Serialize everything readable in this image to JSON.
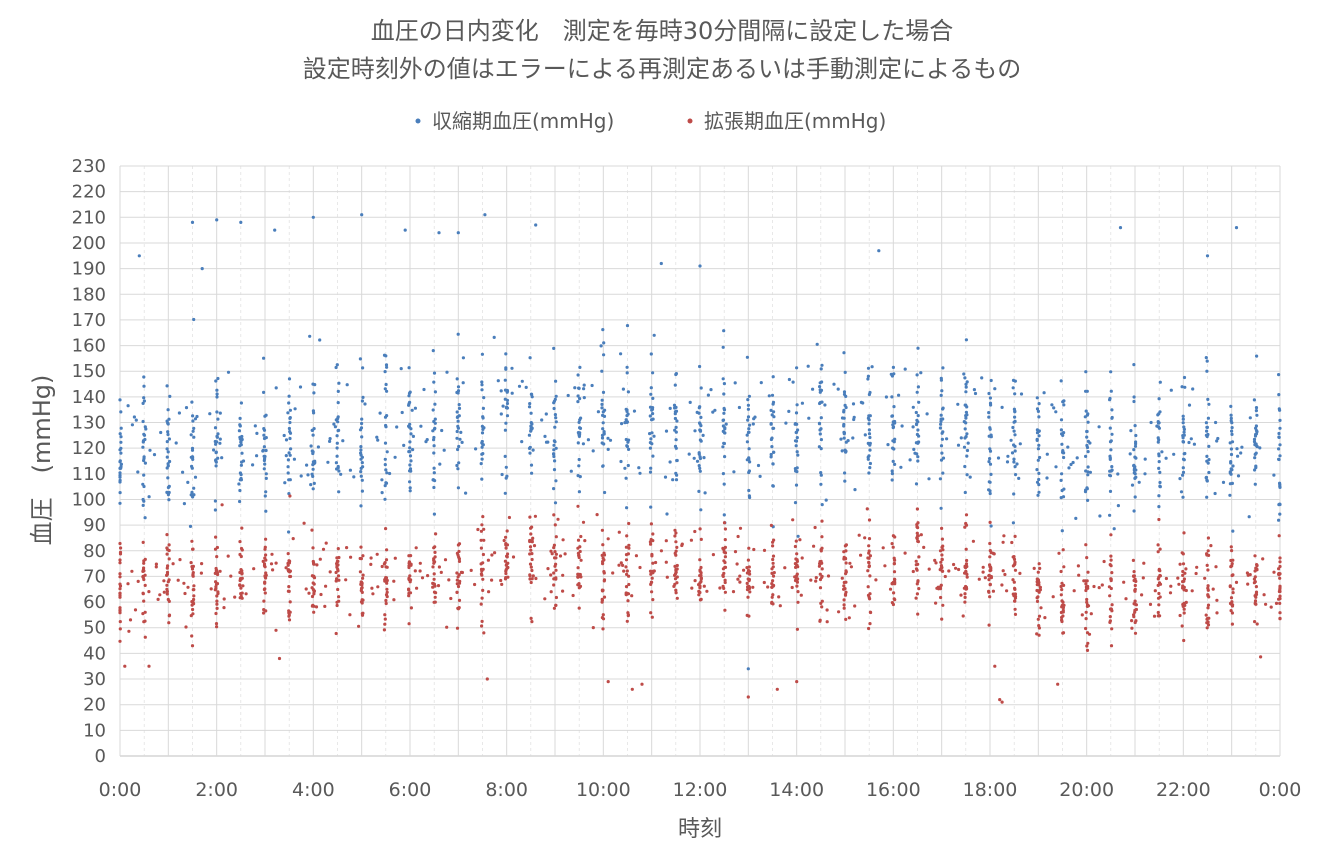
{
  "chart_data": {
    "type": "scatter",
    "title_line1": "血圧の日内変化　測定を毎時30分間隔に設定した場合",
    "title_line2": "設定時刻外の値はエラーによる再測定あるいは手動測定によるもの",
    "xlabel": "時刻",
    "ylabel": "血圧　(mmHg)",
    "xlim_hours": [
      0,
      24
    ],
    "ylim": [
      0,
      230
    ],
    "y_ticks": [
      0,
      10,
      20,
      30,
      40,
      50,
      60,
      70,
      80,
      90,
      100,
      110,
      120,
      130,
      140,
      150,
      160,
      170,
      180,
      190,
      200,
      210,
      220,
      230
    ],
    "x_ticks_hours": [
      0,
      2,
      4,
      6,
      8,
      10,
      12,
      14,
      16,
      18,
      20,
      22,
      24
    ],
    "x_tick_labels": [
      "0:00",
      "2:00",
      "4:00",
      "6:00",
      "8:00",
      "10:00",
      "12:00",
      "14:00",
      "16:00",
      "18:00",
      "20:00",
      "22:00",
      "0:00"
    ],
    "grid": true,
    "legend_position": "top",
    "colors": {
      "systolic": "#4A7EBB",
      "diastolic": "#BE4B48",
      "grid": "#D9D9D9",
      "text": "#595959"
    },
    "series": [
      {
        "key": "systolic",
        "name": "収縮期血圧(mmHg)",
        "hourly_mean": [
          [
            0,
            120
          ],
          [
            1,
            120
          ],
          [
            2,
            121
          ],
          [
            3,
            122
          ],
          [
            4,
            123
          ],
          [
            5,
            124
          ],
          [
            6,
            124
          ],
          [
            7,
            127
          ],
          [
            8,
            132
          ],
          [
            9,
            131
          ],
          [
            10,
            129
          ],
          [
            11,
            128
          ],
          [
            12,
            128
          ],
          [
            13,
            127
          ],
          [
            14,
            127
          ],
          [
            15,
            128
          ],
          [
            16,
            129
          ],
          [
            17,
            129
          ],
          [
            18,
            127
          ],
          [
            19,
            121
          ],
          [
            20,
            118
          ],
          [
            21,
            119
          ],
          [
            22,
            121
          ],
          [
            23,
            121
          ],
          [
            24,
            120
          ]
        ],
        "spread_sd": 14,
        "outliers": [
          [
            1.5,
            208
          ],
          [
            2.0,
            209
          ],
          [
            2.5,
            208
          ],
          [
            4.0,
            210
          ],
          [
            5.0,
            211
          ],
          [
            7.55,
            211
          ],
          [
            8.6,
            207
          ],
          [
            11.2,
            192
          ],
          [
            12.0,
            191
          ],
          [
            20.7,
            206
          ],
          [
            23.1,
            206
          ],
          [
            22.5,
            195
          ],
          [
            15.7,
            197
          ],
          [
            3.2,
            205
          ],
          [
            6.6,
            204
          ],
          [
            7.0,
            204
          ],
          [
            0.4,
            195
          ],
          [
            1.7,
            190
          ],
          [
            5.9,
            205
          ],
          [
            13.0,
            34
          ]
        ]
      },
      {
        "key": "diastolic",
        "name": "拡張期血圧(mmHg)",
        "hourly_mean": [
          [
            0,
            67
          ],
          [
            1,
            68
          ],
          [
            2,
            69
          ],
          [
            3,
            69
          ],
          [
            4,
            70
          ],
          [
            5,
            70
          ],
          [
            6,
            70
          ],
          [
            7,
            72
          ],
          [
            8,
            77
          ],
          [
            9,
            75
          ],
          [
            10,
            73
          ],
          [
            11,
            72
          ],
          [
            12,
            72
          ],
          [
            13,
            71
          ],
          [
            14,
            71
          ],
          [
            15,
            72
          ],
          [
            16,
            73
          ],
          [
            17,
            74
          ],
          [
            18,
            72
          ],
          [
            19,
            64
          ],
          [
            20,
            61
          ],
          [
            21,
            63
          ],
          [
            22,
            65
          ],
          [
            23,
            66
          ],
          [
            24,
            67
          ]
        ],
        "spread_sd": 9,
        "outliers": [
          [
            18.2,
            22
          ],
          [
            18.25,
            21
          ],
          [
            13.0,
            23
          ],
          [
            13.6,
            26
          ],
          [
            10.1,
            29
          ],
          [
            10.6,
            26
          ],
          [
            10.8,
            28
          ],
          [
            14.0,
            29
          ],
          [
            7.6,
            30
          ],
          [
            19.4,
            28
          ],
          [
            0.1,
            35
          ],
          [
            0.6,
            35
          ],
          [
            1.5,
            43
          ],
          [
            3.3,
            38
          ],
          [
            18.1,
            35
          ]
        ]
      }
    ],
    "points_per_half_hour": 22,
    "random_points_per_hour": 14
  }
}
